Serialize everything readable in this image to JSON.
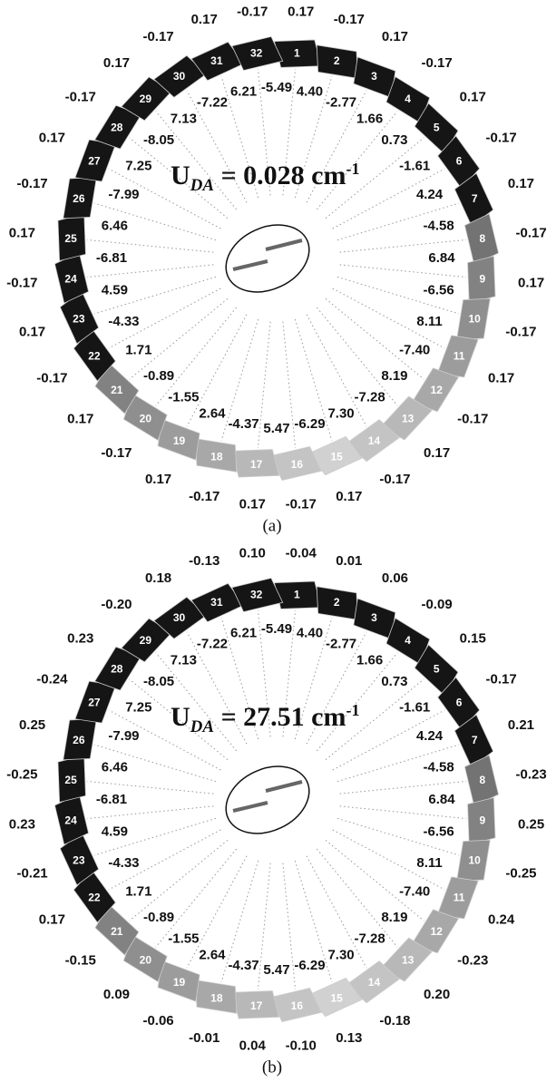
{
  "units": [
    "1",
    "2",
    "3",
    "4",
    "5",
    "6",
    "7",
    "8",
    "9",
    "10",
    "11",
    "12",
    "13",
    "14",
    "15",
    "16",
    "17",
    "18",
    "19",
    "20",
    "21",
    "22",
    "23",
    "24",
    "25",
    "26",
    "27",
    "28",
    "29",
    "30",
    "31",
    "32"
  ],
  "panels": [
    {
      "caption": "(a)",
      "title": {
        "symbol": "U",
        "subscript": "DA",
        "value": " = 0.028 cm",
        "superscript": "-1"
      },
      "outer_values": [
        "0.17",
        "-0.17",
        "0.17",
        "-0.17",
        "0.17",
        "-0.17",
        "0.17",
        "-0.17",
        "0.17",
        "-0.17",
        "0.17",
        "-0.17",
        "0.17",
        "-0.17",
        "0.17",
        "-0.17",
        "0.17",
        "-0.17",
        "0.17",
        "-0.17",
        "0.17",
        "-0.17",
        "0.17",
        "-0.17",
        "0.17",
        "-0.17",
        "0.17",
        "-0.17",
        "0.17",
        "-0.17",
        "0.17",
        "-0.17"
      ],
      "couplings": [
        "-5.49",
        "4.40",
        "-2.77",
        "1.66",
        "0.73",
        "-1.61",
        "4.24",
        "-4.58",
        "6.84",
        "-6.56",
        "8.11",
        "-7.40",
        "8.19",
        "-7.28",
        "7.30",
        "-6.29",
        "5.47",
        "-4.37",
        "2.64",
        "-1.55",
        "-0.89",
        "1.71",
        "-4.33",
        "4.59",
        "-6.81",
        "6.46",
        "-7.99",
        "7.25",
        "-8.05",
        "7.13",
        "-7.22",
        "6.21"
      ]
    },
    {
      "caption": "(b)",
      "title": {
        "symbol": "U",
        "subscript": "DA",
        "value": " = 27.51 cm",
        "superscript": "-1"
      },
      "outer_values": [
        "-0.04",
        "0.01",
        "0.06",
        "-0.09",
        "0.15",
        "-0.17",
        "0.21",
        "-0.23",
        "0.25",
        "-0.25",
        "0.24",
        "-0.23",
        "0.20",
        "-0.18",
        "0.13",
        "-0.10",
        "0.04",
        "-0.01",
        "-0.06",
        "0.09",
        "-0.15",
        "0.17",
        "-0.21",
        "0.23",
        "-0.25",
        "0.25",
        "-0.24",
        "0.23",
        "-0.20",
        "0.18",
        "-0.13",
        "0.10"
      ],
      "couplings": [
        "-5.49",
        "4.40",
        "-2.77",
        "1.66",
        "0.73",
        "-1.61",
        "4.24",
        "-4.58",
        "6.84",
        "-6.56",
        "8.11",
        "-7.40",
        "8.19",
        "-7.28",
        "7.30",
        "-6.29",
        "5.47",
        "-4.37",
        "2.64",
        "-1.55",
        "-0.89",
        "1.71",
        "-4.33",
        "4.59",
        "-6.81",
        "6.46",
        "-7.99",
        "7.25",
        "-8.05",
        "7.13",
        "-7.22",
        "6.21"
      ]
    }
  ]
}
